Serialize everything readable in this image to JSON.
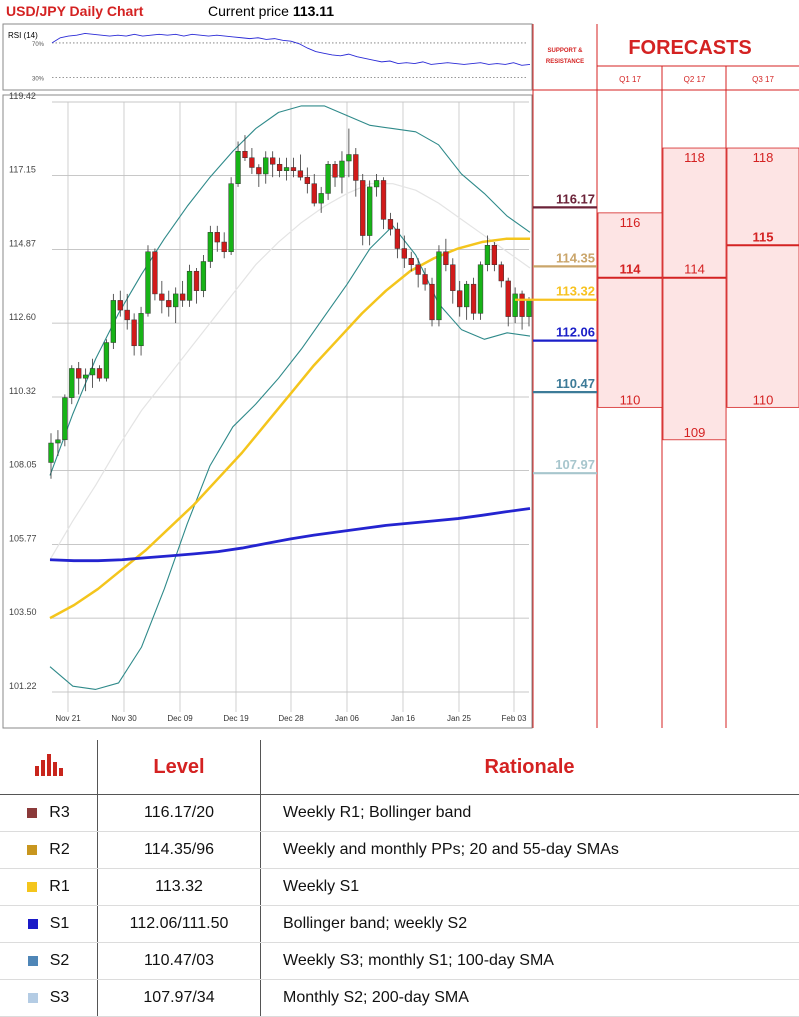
{
  "header": {
    "title": "USD/JPY Daily Chart",
    "price_label": "Current price",
    "price_value": "113.11"
  },
  "chart_data": {
    "type": "candlestick",
    "title": "USD/JPY Daily Chart",
    "y_ticks": [
      "119.42",
      "117.15",
      "114.87",
      "112.60",
      "110.32",
      "108.05",
      "105.77",
      "103.50",
      "101.22"
    ],
    "ylim": [
      101.22,
      119.42
    ],
    "x_ticks": [
      "Nov 21",
      "Nov 30",
      "Dec 09",
      "Dec 19",
      "Dec 28",
      "Jan 06",
      "Jan 16",
      "Jan 25",
      "Feb 03"
    ],
    "grid": true,
    "candles": [
      [
        108.3,
        109.2,
        107.8,
        108.9
      ],
      [
        108.9,
        109.3,
        108.5,
        109.0
      ],
      [
        109.0,
        110.4,
        108.8,
        110.3
      ],
      [
        110.3,
        111.3,
        110.1,
        111.2
      ],
      [
        111.2,
        111.4,
        110.4,
        110.9
      ],
      [
        110.9,
        111.2,
        110.5,
        111.0
      ],
      [
        111.0,
        111.5,
        110.6,
        111.2
      ],
      [
        111.2,
        111.3,
        110.8,
        110.9
      ],
      [
        110.9,
        112.1,
        110.8,
        112.0
      ],
      [
        112.0,
        113.5,
        111.8,
        113.3
      ],
      [
        113.3,
        113.6,
        112.8,
        113.0
      ],
      [
        113.0,
        113.5,
        112.4,
        112.7
      ],
      [
        112.7,
        112.9,
        111.6,
        111.9
      ],
      [
        111.9,
        113.1,
        111.6,
        112.9
      ],
      [
        112.9,
        115.0,
        112.8,
        114.8
      ],
      [
        114.8,
        114.9,
        113.3,
        113.5
      ],
      [
        113.5,
        113.9,
        112.9,
        113.3
      ],
      [
        113.3,
        113.6,
        112.8,
        113.1
      ],
      [
        113.1,
        113.7,
        112.6,
        113.5
      ],
      [
        113.5,
        113.9,
        113.1,
        113.3
      ],
      [
        113.3,
        114.4,
        113.1,
        114.2
      ],
      [
        114.2,
        114.3,
        113.2,
        113.6
      ],
      [
        113.6,
        114.7,
        113.4,
        114.5
      ],
      [
        114.5,
        115.6,
        114.3,
        115.4
      ],
      [
        115.4,
        115.6,
        114.8,
        115.1
      ],
      [
        115.1,
        115.4,
        114.6,
        114.8
      ],
      [
        114.8,
        117.1,
        114.7,
        116.9
      ],
      [
        116.9,
        118.2,
        116.8,
        117.9
      ],
      [
        117.9,
        118.4,
        117.6,
        117.7
      ],
      [
        117.7,
        118.0,
        117.2,
        117.4
      ],
      [
        117.4,
        117.5,
        116.8,
        117.2
      ],
      [
        117.2,
        117.9,
        116.9,
        117.7
      ],
      [
        117.7,
        117.9,
        117.1,
        117.5
      ],
      [
        117.5,
        117.7,
        117.1,
        117.3
      ],
      [
        117.3,
        117.7,
        117.0,
        117.4
      ],
      [
        117.4,
        117.7,
        117.1,
        117.3
      ],
      [
        117.3,
        117.8,
        117.0,
        117.1
      ],
      [
        117.1,
        117.4,
        116.6,
        116.9
      ],
      [
        116.9,
        117.2,
        116.2,
        116.3
      ],
      [
        116.3,
        116.8,
        116.0,
        116.6
      ],
      [
        116.6,
        117.6,
        116.4,
        117.5
      ],
      [
        117.5,
        117.6,
        116.8,
        117.1
      ],
      [
        117.1,
        117.9,
        116.6,
        117.6
      ],
      [
        117.6,
        118.6,
        117.1,
        117.8
      ],
      [
        117.8,
        118.0,
        116.5,
        117.0
      ],
      [
        117.0,
        117.2,
        115.0,
        115.3
      ],
      [
        115.3,
        117.0,
        115.0,
        116.8
      ],
      [
        116.8,
        117.2,
        116.5,
        117.0
      ],
      [
        117.0,
        117.1,
        115.5,
        115.8
      ],
      [
        115.8,
        116.0,
        115.3,
        115.5
      ],
      [
        115.5,
        115.7,
        114.6,
        114.9
      ],
      [
        114.9,
        115.3,
        114.3,
        114.6
      ],
      [
        114.6,
        114.8,
        114.2,
        114.4
      ],
      [
        114.4,
        114.6,
        113.7,
        114.1
      ],
      [
        114.1,
        114.3,
        113.6,
        113.8
      ],
      [
        113.8,
        114.0,
        112.5,
        112.7
      ],
      [
        112.7,
        115.0,
        112.5,
        114.8
      ],
      [
        114.8,
        115.2,
        114.2,
        114.4
      ],
      [
        114.4,
        114.6,
        113.2,
        113.6
      ],
      [
        113.6,
        113.9,
        112.8,
        113.1
      ],
      [
        113.1,
        113.9,
        112.7,
        113.8
      ],
      [
        113.8,
        114.0,
        112.7,
        112.9
      ],
      [
        112.9,
        114.5,
        112.7,
        114.4
      ],
      [
        114.4,
        115.3,
        114.2,
        115.0
      ],
      [
        115.0,
        115.1,
        114.2,
        114.4
      ],
      [
        114.4,
        114.5,
        113.7,
        113.9
      ],
      [
        113.9,
        114.0,
        112.5,
        112.8
      ],
      [
        112.8,
        113.7,
        112.6,
        113.5
      ],
      [
        113.5,
        113.6,
        112.4,
        112.8
      ],
      [
        112.8,
        113.4,
        112.5,
        113.3
      ]
    ],
    "indicators": {
      "sma55": [
        103.5,
        103.9,
        104.4,
        105.0,
        105.6,
        106.3,
        107.0,
        107.8,
        108.6,
        109.5,
        110.4,
        111.3,
        112.1,
        112.9,
        113.6,
        114.2,
        114.6,
        114.9,
        115.1,
        115.2,
        115.2
      ],
      "sma200": [
        105.3,
        105.27,
        105.27,
        105.3,
        105.36,
        105.42,
        105.48,
        105.55,
        105.66,
        105.8,
        105.94,
        106.06,
        106.16,
        106.26,
        106.36,
        106.43,
        106.5,
        106.57,
        106.67,
        106.78,
        106.88
      ],
      "bb_upper": [
        107.9,
        109.8,
        111.5,
        112.9,
        114.1,
        115.2,
        116.2,
        117.1,
        117.9,
        118.6,
        119.1,
        119.3,
        119.3,
        119.0,
        118.7,
        118.6,
        118.5,
        118.1,
        117.2,
        116.6,
        115.9,
        115.4
      ],
      "bb_lower": [
        102.0,
        101.4,
        101.3,
        101.5,
        102.6,
        104.4,
        106.4,
        108.2,
        109.4,
        110.1,
        110.9,
        111.8,
        112.8,
        113.8,
        114.9,
        115.6,
        114.7,
        113.2,
        112.4,
        112.1,
        112.3,
        112.2
      ],
      "mid_band": [
        105.3,
        106.5,
        107.6,
        108.8,
        109.9,
        110.8,
        111.7,
        112.6,
        113.5,
        114.4,
        115.1,
        115.7,
        116.2,
        116.6,
        116.9,
        116.9,
        116.7,
        116.3,
        115.8,
        115.3,
        114.8,
        114.3
      ]
    },
    "rsi": {
      "label": "RSI (14)",
      "levels": [
        "70%",
        "30%"
      ],
      "values": [
        70,
        76,
        78,
        79,
        81,
        80,
        79,
        78,
        79,
        78,
        80,
        78,
        79,
        80,
        79,
        80,
        78,
        80,
        79,
        78,
        79,
        78,
        77,
        76,
        75,
        76,
        74,
        75,
        73,
        72,
        69,
        64,
        60,
        58,
        56,
        55,
        57,
        54,
        52,
        50,
        48,
        49,
        46,
        47,
        46,
        48,
        45,
        46,
        47,
        46,
        45,
        46,
        47,
        45,
        46,
        45,
        47,
        44,
        45
      ]
    },
    "support_resistance": {
      "header": "SUPPORT & RESISTANCE",
      "levels": [
        {
          "value": "116.17",
          "color": "#6b2238"
        },
        {
          "value": "114.35",
          "color": "#caa56a"
        },
        {
          "value": "113.32",
          "color": "#f7c21f"
        },
        {
          "value": "112.06",
          "color": "#1b1fc8"
        },
        {
          "value": "110.47",
          "color": "#3d7b98"
        },
        {
          "value": "107.97",
          "color": "#a7c6cd"
        }
      ]
    },
    "forecasts": {
      "title": "FORECASTS",
      "columns": [
        {
          "label": "Q1 17",
          "high": "116",
          "mid": "114",
          "low": "110"
        },
        {
          "label": "Q2 17",
          "high": "118",
          "mid": "114",
          "low": "109"
        },
        {
          "label": "Q3 17",
          "high": "118",
          "mid": "115",
          "low": "110"
        }
      ]
    }
  },
  "table": {
    "headers": {
      "level": "Level",
      "rationale": "Rationale"
    },
    "rows": [
      {
        "code": "R3",
        "level": "116.17/20",
        "rationale": "Weekly R1; Bollinger band",
        "color": "#8b3a3a"
      },
      {
        "code": "R2",
        "level": "114.35/96",
        "rationale": "Weekly and monthly PPs; 20 and 55-day SMAs",
        "color": "#c8961e"
      },
      {
        "code": "R1",
        "level": "113.32",
        "rationale": "Weekly S1",
        "color": "#f4c51c"
      },
      {
        "code": "S1",
        "level": "112.06/111.50",
        "rationale": "Bollinger band; weekly S2",
        "color": "#1a1ac8"
      },
      {
        "code": "S2",
        "level": "110.47/03",
        "rationale": "Weekly S3; monthly S1; 100-day SMA",
        "color": "#4f86b7"
      },
      {
        "code": "S3",
        "level": "107.97/34",
        "rationale": "Monthly S2; 200-day SMA",
        "color": "#b4cce4"
      }
    ]
  }
}
